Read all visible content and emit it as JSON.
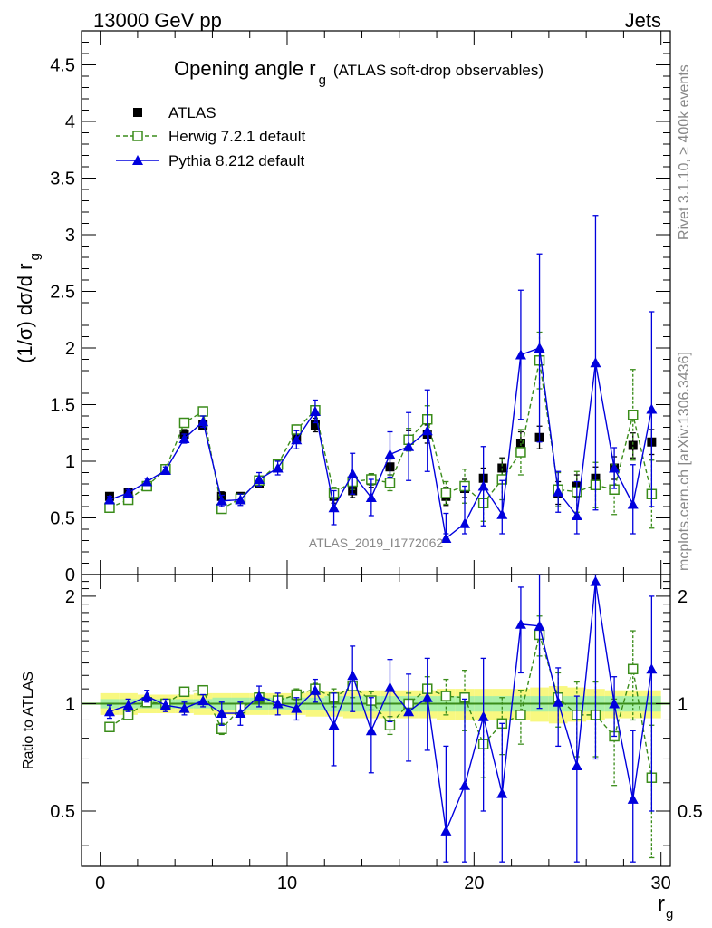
{
  "header": {
    "left": "13000 GeV pp",
    "right": "Jets"
  },
  "colors": {
    "atlas": "#000000",
    "herwig": "#3a8c1a",
    "pythia": "#0000dd",
    "band_inner": "#a8f0a8",
    "band_outer": "#f8f880",
    "ratio_line": "#3a8c1a",
    "side_text": "#888888"
  },
  "side_labels": {
    "rivet": "Rivet 3.1.10, ≥ 400k events",
    "mcplots": "mcplots.cern.ch [arXiv:1306.3436]"
  },
  "watermark": "ATLAS_2019_I1772062",
  "chart_data": [
    {
      "type": "scatter",
      "title_main": "Opening angle r",
      "title_sub": "g",
      "title_note": "(ATLAS soft-drop observables)",
      "ylabel": "(1/σ) dσ/d r",
      "ylabel_sub": "g",
      "xlim": [
        -1,
        30.5
      ],
      "ylim": [
        0,
        4.8
      ],
      "yticks": [
        0,
        0.5,
        1,
        1.5,
        2,
        2.5,
        3,
        3.5,
        4,
        4.5
      ],
      "ytick_labels": [
        "0",
        "0.5",
        "1",
        "1.5",
        "2",
        "2.5",
        "3",
        "3.5",
        "4",
        "4.5"
      ],
      "legend": [
        "ATLAS",
        "Herwig 7.2.1 default",
        "Pythia 8.212 default"
      ],
      "x": [
        0.5,
        1.5,
        2.5,
        3.5,
        4.5,
        5.5,
        6.5,
        7.5,
        8.5,
        9.5,
        10.5,
        11.5,
        12.5,
        13.5,
        14.5,
        15.5,
        16.5,
        17.5,
        18.5,
        19.5,
        20.5,
        21.5,
        22.5,
        23.5,
        24.5,
        25.5,
        26.5,
        27.5,
        28.5,
        29.5
      ],
      "series": [
        {
          "name": "ATLAS",
          "values": [
            0.69,
            0.72,
            0.78,
            0.93,
            1.24,
            1.32,
            0.69,
            0.69,
            0.8,
            0.95,
            1.21,
            1.32,
            0.69,
            0.74,
            0.83,
            0.95,
            1.19,
            1.24,
            0.69,
            0.76,
            0.85,
            0.94,
            1.16,
            1.21,
            0.72,
            0.78,
            0.85,
            0.94,
            1.14,
            1.17
          ],
          "errors": [
            0.03,
            0.03,
            0.03,
            0.03,
            0.04,
            0.04,
            0.04,
            0.03,
            0.03,
            0.04,
            0.05,
            0.06,
            0.06,
            0.06,
            0.06,
            0.07,
            0.08,
            0.08,
            0.08,
            0.08,
            0.09,
            0.09,
            0.1,
            0.1,
            0.1,
            0.1,
            0.1,
            0.1,
            0.11,
            0.11
          ]
        },
        {
          "name": "Herwig 7.2.1 default",
          "values": [
            0.59,
            0.66,
            0.78,
            0.93,
            1.34,
            1.44,
            0.58,
            0.67,
            0.83,
            0.97,
            1.28,
            1.45,
            0.72,
            0.82,
            0.84,
            0.81,
            1.19,
            1.37,
            0.72,
            0.78,
            0.63,
            0.84,
            1.08,
            1.89,
            0.75,
            0.73,
            0.79,
            0.75,
            1.41,
            0.71
          ],
          "errors": [
            0.02,
            0.02,
            0.02,
            0.02,
            0.03,
            0.03,
            0.02,
            0.02,
            0.03,
            0.03,
            0.04,
            0.04,
            0.05,
            0.07,
            0.05,
            0.07,
            0.1,
            0.12,
            0.1,
            0.15,
            0.16,
            0.18,
            0.2,
            0.25,
            0.15,
            0.18,
            0.2,
            0.22,
            0.4,
            0.3
          ]
        },
        {
          "name": "Pythia 8.212 default",
          "values": [
            0.66,
            0.72,
            0.82,
            0.92,
            1.2,
            1.35,
            0.65,
            0.66,
            0.84,
            0.94,
            1.19,
            1.44,
            0.59,
            0.89,
            0.68,
            1.06,
            1.13,
            1.27,
            0.32,
            0.45,
            0.78,
            0.53,
            1.94,
            2.0,
            0.73,
            0.52,
            1.87,
            0.94,
            0.62,
            1.46
          ],
          "errors": [
            0.03,
            0.03,
            0.03,
            0.03,
            0.04,
            0.05,
            0.05,
            0.05,
            0.06,
            0.06,
            0.08,
            0.1,
            0.15,
            0.18,
            0.16,
            0.2,
            0.3,
            0.36,
            0.22,
            0.33,
            0.35,
            0.3,
            0.57,
            0.83,
            0.18,
            0.3,
            1.3,
            0.18,
            0.35,
            0.86
          ]
        }
      ]
    },
    {
      "type": "scatter",
      "ylabel": "Ratio to ATLAS",
      "xlabel": "r",
      "xlabel_sub": "g",
      "xlim": [
        -1,
        30.5
      ],
      "ylim": [
        0.35,
        2.3
      ],
      "yticks": [
        0.5,
        1,
        2
      ],
      "ytick_labels": [
        "0.5",
        "1",
        "2"
      ],
      "xticks": [
        0,
        10,
        20,
        30
      ],
      "xtick_labels": [
        "0",
        "10",
        "20",
        "30"
      ],
      "x": [
        0.5,
        1.5,
        2.5,
        3.5,
        4.5,
        5.5,
        6.5,
        7.5,
        8.5,
        9.5,
        10.5,
        11.5,
        12.5,
        13.5,
        14.5,
        15.5,
        16.5,
        17.5,
        18.5,
        19.5,
        20.5,
        21.5,
        22.5,
        23.5,
        24.5,
        25.5,
        26.5,
        27.5,
        28.5,
        29.5
      ],
      "band_inner": [
        0.03,
        0.03,
        0.03,
        0.03,
        0.03,
        0.03,
        0.04,
        0.04,
        0.04,
        0.04,
        0.04,
        0.04,
        0.05,
        0.05,
        0.05,
        0.05,
        0.05,
        0.05,
        0.05,
        0.05,
        0.05,
        0.05,
        0.05,
        0.05,
        0.05,
        0.05,
        0.05,
        0.05,
        0.05,
        0.05
      ],
      "band_outer": [
        0.07,
        0.07,
        0.06,
        0.06,
        0.06,
        0.07,
        0.07,
        0.07,
        0.07,
        0.07,
        0.07,
        0.08,
        0.08,
        0.09,
        0.09,
        0.09,
        0.09,
        0.09,
        0.1,
        0.1,
        0.1,
        0.1,
        0.1,
        0.11,
        0.12,
        0.11,
        0.1,
        0.09,
        0.09,
        0.09
      ],
      "series": [
        {
          "name": "Herwig 7.2.1 default",
          "values": [
            0.86,
            0.93,
            1.01,
            1.0,
            1.08,
            1.09,
            0.85,
            0.97,
            1.04,
            1.02,
            1.06,
            1.1,
            1.04,
            1.12,
            1.02,
            0.87,
            1.0,
            1.1,
            1.05,
            1.04,
            0.77,
            0.88,
            0.93,
            1.56,
            1.04,
            0.93,
            0.93,
            0.81,
            1.25,
            0.62
          ],
          "errors": [
            0.02,
            0.02,
            0.03,
            0.02,
            0.03,
            0.03,
            0.03,
            0.03,
            0.03,
            0.03,
            0.04,
            0.04,
            0.06,
            0.08,
            0.06,
            0.05,
            0.07,
            0.09,
            0.12,
            0.2,
            0.15,
            0.16,
            0.16,
            0.2,
            0.18,
            0.22,
            0.22,
            0.22,
            0.35,
            0.25
          ]
        },
        {
          "name": "Pythia 8.212 default",
          "values": [
            0.95,
            0.99,
            1.05,
            0.99,
            0.97,
            1.02,
            0.94,
            0.94,
            1.05,
            1.0,
            0.97,
            1.09,
            0.87,
            1.2,
            0.84,
            1.11,
            0.95,
            1.04,
            0.44,
            0.59,
            0.92,
            0.56,
            1.67,
            1.65,
            1.01,
            0.67,
            2.2,
            1.0,
            0.54,
            1.25
          ],
          "errors": [
            0.04,
            0.04,
            0.04,
            0.04,
            0.04,
            0.04,
            0.07,
            0.07,
            0.07,
            0.07,
            0.07,
            0.08,
            0.2,
            0.25,
            0.2,
            0.22,
            0.26,
            0.3,
            0.32,
            0.44,
            0.42,
            0.32,
            0.45,
            0.68,
            0.25,
            0.38,
            1.5,
            0.19,
            0.3,
            0.75
          ]
        }
      ]
    }
  ]
}
